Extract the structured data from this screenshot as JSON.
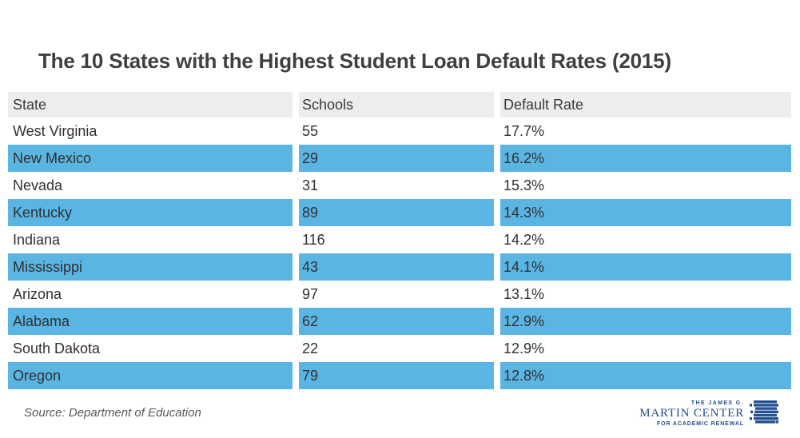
{
  "title": "The 10 States with the Highest Student Loan Default Rates (2015)",
  "source_note": "Source: Department of Education",
  "table": {
    "headers": [
      "State",
      "Schools",
      "Default Rate"
    ],
    "rows": [
      {
        "state": "West Virginia",
        "schools": "55",
        "rate": "17.7%",
        "highlighted": false
      },
      {
        "state": "New Mexico",
        "schools": "29",
        "rate": "16.2%",
        "highlighted": true
      },
      {
        "state": "Nevada",
        "schools": "31",
        "rate": "15.3%",
        "highlighted": false
      },
      {
        "state": "Kentucky",
        "schools": "89",
        "rate": "14.3%",
        "highlighted": true
      },
      {
        "state": "Indiana",
        "schools": "116",
        "rate": "14.2%",
        "highlighted": false
      },
      {
        "state": "Mississippi",
        "schools": "43",
        "rate": "14.1%",
        "highlighted": true
      },
      {
        "state": "Arizona",
        "schools": "97",
        "rate": "13.1%",
        "highlighted": false
      },
      {
        "state": "Alabama",
        "schools": "62",
        "rate": "12.9%",
        "highlighted": true
      },
      {
        "state": "South Dakota",
        "schools": "22",
        "rate": "12.9%",
        "highlighted": false
      },
      {
        "state": "Oregon",
        "schools": "79",
        "rate": "12.8%",
        "highlighted": true
      }
    ]
  },
  "logo": {
    "line1": "THE JAMES G.",
    "line2": "MARTIN CENTER",
    "line3": "FOR ACADEMIC RENEWAL",
    "icon": "stacked-books-icon"
  },
  "colors": {
    "highlight_blue": "#5bb5e2",
    "header_gray": "#ededed",
    "title_text": "#3f3f3f",
    "body_text": "#303030",
    "source_text": "#58595b",
    "logo_navy": "#24508f"
  },
  "chart_data": {
    "type": "table",
    "title": "The 10 States with the Highest Student Loan Default Rates (2015)",
    "columns": [
      "State",
      "Schools",
      "Default Rate"
    ],
    "rows": [
      [
        "West Virginia",
        55,
        "17.7%"
      ],
      [
        "New Mexico",
        29,
        "16.2%"
      ],
      [
        "Nevada",
        31,
        "15.3%"
      ],
      [
        "Kentucky",
        89,
        "14.3%"
      ],
      [
        "Indiana",
        116,
        "14.2%"
      ],
      [
        "Mississippi",
        43,
        "14.1%"
      ],
      [
        "Arizona",
        97,
        "13.1%"
      ],
      [
        "Alabama",
        62,
        "12.9%"
      ],
      [
        "South Dakota",
        22,
        "12.9%"
      ],
      [
        "Oregon",
        79,
        "12.8%"
      ]
    ],
    "source": "Source: Department of Education",
    "layout_hints": {
      "header_background": "#ededed",
      "alternating_highlight": "#5bb5e2",
      "highlight_starts_on_row": 2
    }
  }
}
